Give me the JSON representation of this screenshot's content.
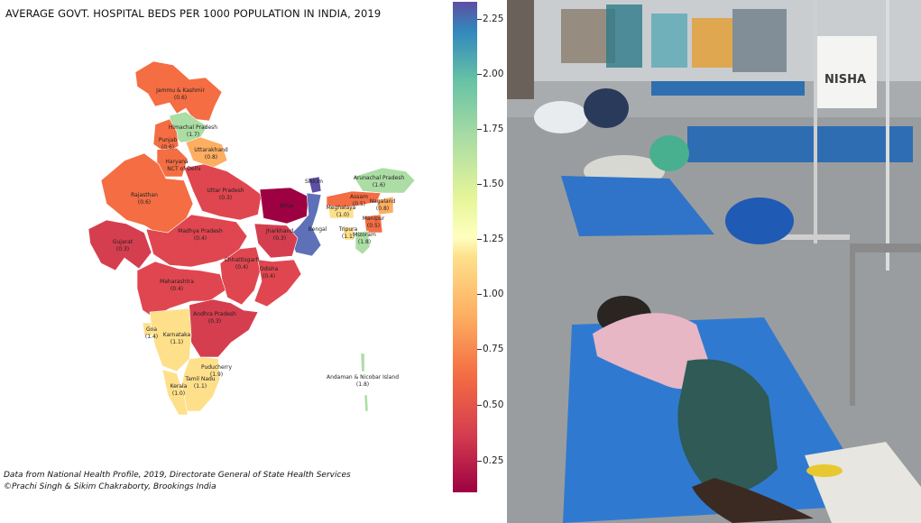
{
  "chart_data": {
    "type": "choropleth-map",
    "title": "AVERAGE GOVT. HOSPITAL BEDS PER 1000 POPULATION IN INDIA, 2019",
    "colorbar": {
      "ticks": [
        "0.25",
        "0.50",
        "0.75",
        "1.00",
        "1.25",
        "1.50",
        "1.75",
        "2.00",
        "2.25"
      ],
      "colormap": "Spectral"
    },
    "regions": [
      {
        "name": "Jammu & Kashmir",
        "value": "(0.6)"
      },
      {
        "name": "Himachal Pradesh",
        "value": "(1.7)"
      },
      {
        "name": "Punjab",
        "value": "(0.6)"
      },
      {
        "name": "Uttarakhand",
        "value": "(0.8)"
      },
      {
        "name": "Haryana",
        "value": ""
      },
      {
        "name": "NCT of Delhi",
        "value": ""
      },
      {
        "name": "Rajasthan",
        "value": "(0.6)"
      },
      {
        "name": "Uttar Pradesh",
        "value": "(0.3)"
      },
      {
        "name": "Bihar",
        "value": ""
      },
      {
        "name": "Gujarat",
        "value": "(0.3)"
      },
      {
        "name": "Madhya Pradesh",
        "value": "(0.4)"
      },
      {
        "name": "Jharkhand",
        "value": "(0.3)"
      },
      {
        "name": "Bengal",
        "value": ""
      },
      {
        "name": "Sikkim",
        "value": ""
      },
      {
        "name": "Arunachal Pradesh",
        "value": "(1.6)"
      },
      {
        "name": "Assam",
        "value": "(0.5)"
      },
      {
        "name": "Meghalaya",
        "value": "(1.0)"
      },
      {
        "name": "Nagaland",
        "value": "(0.8)"
      },
      {
        "name": "Manipur",
        "value": "(0.5)"
      },
      {
        "name": "Tripura",
        "value": "(1.1)"
      },
      {
        "name": "Mizoram",
        "value": "(1.8)"
      },
      {
        "name": "Chhattisgarh",
        "value": "(0.4)"
      },
      {
        "name": "Odisha",
        "value": "(0.4)"
      },
      {
        "name": "Maharashtra",
        "value": "(0.4)"
      },
      {
        "name": "Andhra Pradesh",
        "value": "(0.3)"
      },
      {
        "name": "Goa",
        "value": "(1.4)"
      },
      {
        "name": "Karnataka",
        "value": "(1.1)"
      },
      {
        "name": "Puducherry",
        "value": "(1.9)"
      },
      {
        "name": "Tamil Nadu",
        "value": "(1.1)"
      },
      {
        "name": "Kerala",
        "value": "(1.0)"
      },
      {
        "name": "Andaman & Nicobar Island",
        "value": "(1.8)"
      }
    ],
    "source_lines": [
      "Data from National Health Profile, 2019, Directorate General of State Health Services",
      "©Prachi Singh & Sikim Chakraborty, Brookings India"
    ]
  },
  "photo": {
    "sign_text": "NISHA"
  }
}
